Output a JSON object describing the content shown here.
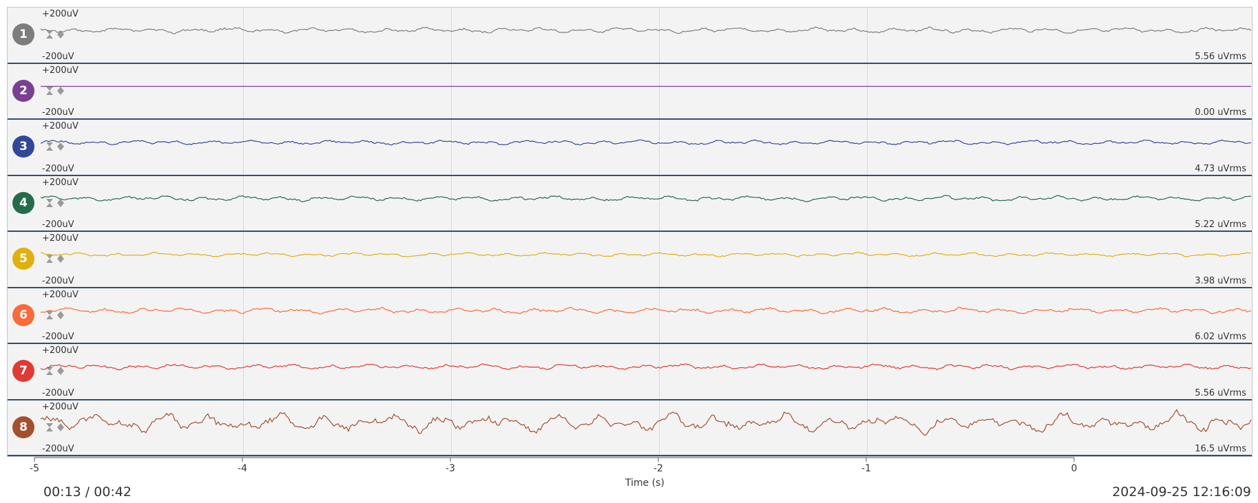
{
  "scale": {
    "top": "+200uV",
    "bottom": "-200uV"
  },
  "axis": {
    "ticks": [
      "-5",
      "-4",
      "-3",
      "-2",
      "-1",
      "0"
    ],
    "label": "Time (s)"
  },
  "footer": {
    "playback": "00:13 / 00:42",
    "timestamp": "2024-09-25 12:16:09"
  },
  "channels": [
    {
      "number": "1",
      "color": "#7d7d7d",
      "rms": "5.56 uVrms",
      "amp": 3.5
    },
    {
      "number": "2",
      "color": "#7b3f93",
      "rms": "0.00 uVrms",
      "amp": 0
    },
    {
      "number": "3",
      "color": "#33479a",
      "rms": "4.73 uVrms",
      "amp": 3
    },
    {
      "number": "4",
      "color": "#256b4a",
      "rms": "5.22 uVrms",
      "amp": 3.4
    },
    {
      "number": "5",
      "color": "#e0b010",
      "rms": "3.98 uVrms",
      "amp": 2.5
    },
    {
      "number": "6",
      "color": "#fa6a3a",
      "rms": "6.02 uVrms",
      "amp": 3.8
    },
    {
      "number": "7",
      "color": "#e03a35",
      "rms": "5.56 uVrms",
      "amp": 3.5
    },
    {
      "number": "8",
      "color": "#a4502e",
      "rms": "16.5 uVrms",
      "amp": 10
    }
  ]
}
